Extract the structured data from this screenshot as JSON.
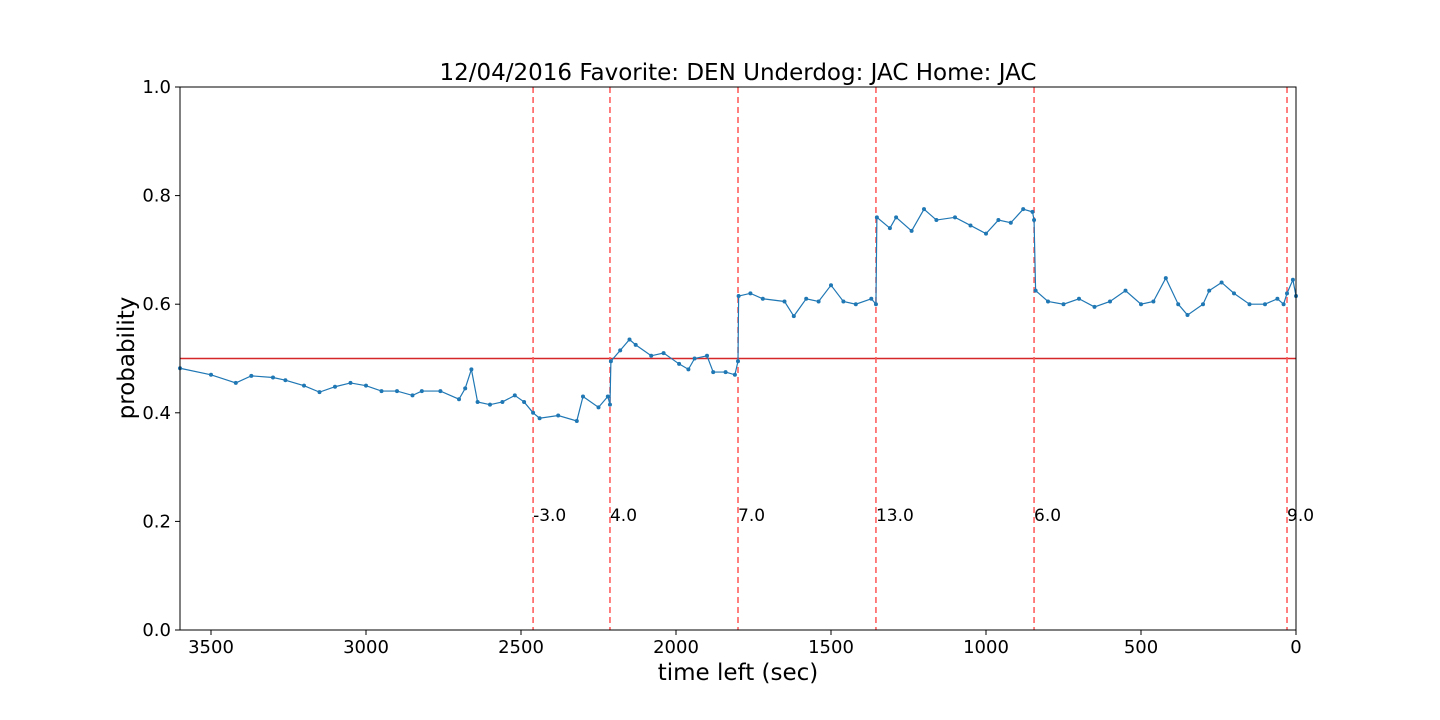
{
  "chart_data": {
    "type": "line",
    "title": "12/04/2016 Favorite: DEN Underdog: JAC Home: JAC",
    "x_label": "time left (sec)",
    "y_label": "probability",
    "xlim": [
      3600,
      0
    ],
    "ylim": [
      0,
      1
    ],
    "xticks": [
      3500,
      3000,
      2500,
      2000,
      1500,
      1000,
      500,
      0
    ],
    "yticks": [
      {
        "value": 0,
        "label": "0.0"
      },
      {
        "value": 0.2,
        "label": "0.2"
      },
      {
        "value": 0.4,
        "label": "0.4"
      },
      {
        "value": 0.6,
        "label": "0.6"
      },
      {
        "value": 0.8,
        "label": "0.8"
      },
      {
        "value": 1,
        "label": "1.0"
      }
    ],
    "hline": {
      "value": 0.5,
      "color": "#d62728"
    },
    "vlines": {
      "color": "#ff5555",
      "items": [
        {
          "x": 2461,
          "label": "-3.0"
        },
        {
          "x": 2213,
          "label": "4.0"
        },
        {
          "x": 1800,
          "label": "7.0"
        },
        {
          "x": 1355,
          "label": "13.0"
        },
        {
          "x": 845,
          "label": "6.0"
        },
        {
          "x": 29,
          "label": "9.0"
        }
      ]
    },
    "series": [
      {
        "color": "#1f77b4",
        "x": [
          3600,
          3500,
          3420,
          3370,
          3300,
          3260,
          3200,
          3150,
          3100,
          3050,
          3000,
          2950,
          2900,
          2850,
          2820,
          2760,
          2700,
          2680,
          2660,
          2640,
          2600,
          2560,
          2520,
          2490,
          2461,
          2440,
          2380,
          2320,
          2300,
          2250,
          2220,
          2213,
          2210,
          2180,
          2150,
          2130,
          2080,
          2040,
          1990,
          1960,
          1940,
          1900,
          1880,
          1840,
          1810,
          1800,
          1798,
          1760,
          1720,
          1650,
          1620,
          1580,
          1540,
          1500,
          1460,
          1420,
          1370,
          1355,
          1352,
          1310,
          1290,
          1240,
          1200,
          1160,
          1100,
          1050,
          1000,
          960,
          920,
          880,
          850,
          845,
          840,
          800,
          750,
          700,
          650,
          600,
          550,
          500,
          460,
          420,
          380,
          350,
          300,
          280,
          240,
          200,
          150,
          100,
          60,
          40,
          29,
          10,
          0
        ],
        "values": [
          0.482,
          0.47,
          0.455,
          0.468,
          0.465,
          0.46,
          0.45,
          0.438,
          0.448,
          0.455,
          0.45,
          0.44,
          0.44,
          0.432,
          0.44,
          0.44,
          0.425,
          0.445,
          0.48,
          0.42,
          0.415,
          0.42,
          0.432,
          0.42,
          0.4,
          0.39,
          0.395,
          0.385,
          0.43,
          0.41,
          0.43,
          0.415,
          0.495,
          0.515,
          0.535,
          0.525,
          0.505,
          0.51,
          0.49,
          0.48,
          0.5,
          0.505,
          0.475,
          0.475,
          0.47,
          0.495,
          0.615,
          0.62,
          0.61,
          0.605,
          0.578,
          0.61,
          0.605,
          0.635,
          0.605,
          0.6,
          0.61,
          0.6,
          0.76,
          0.74,
          0.76,
          0.735,
          0.775,
          0.755,
          0.76,
          0.745,
          0.73,
          0.755,
          0.75,
          0.775,
          0.77,
          0.755,
          0.625,
          0.605,
          0.6,
          0.61,
          0.595,
          0.605,
          0.625,
          0.6,
          0.605,
          0.648,
          0.6,
          0.58,
          0.6,
          0.625,
          0.64,
          0.62,
          0.6,
          0.6,
          0.61,
          0.6,
          0.62,
          0.645,
          0.615
        ]
      }
    ]
  }
}
